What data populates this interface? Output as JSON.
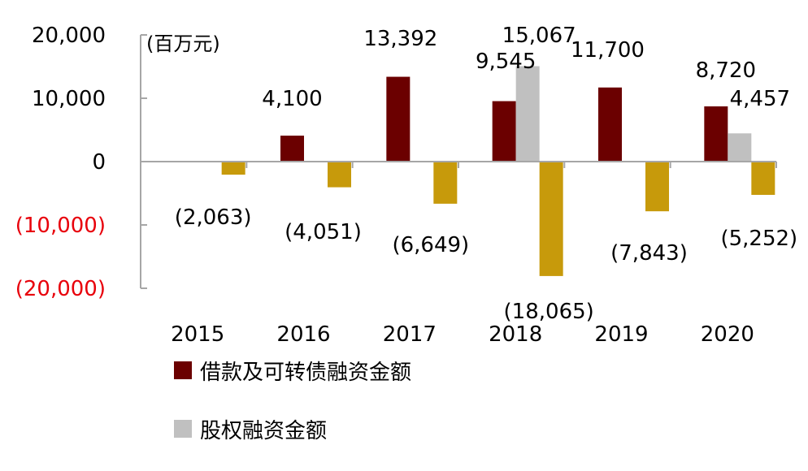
{
  "chart_data": {
    "type": "bar",
    "unit_label": "(百万元)",
    "categories": [
      "2015",
      "2016",
      "2017",
      "2018",
      "2019",
      "2020"
    ],
    "series": [
      {
        "name": "借款及可转债融资金额",
        "color": "#6b0000",
        "values": [
          null,
          4100,
          13392,
          9545,
          11700,
          8720
        ],
        "labels": [
          "",
          "4,100",
          "13,392",
          "9,545",
          "11,700",
          "8,720"
        ]
      },
      {
        "name": "股权融资金额",
        "color": "#c0c0c0",
        "values": [
          null,
          null,
          null,
          15067,
          null,
          4457
        ],
        "labels": [
          "",
          "",
          "",
          "15,067",
          "",
          "4,457"
        ]
      },
      {
        "values": [
          -2063,
          -4051,
          -6649,
          -18065,
          -7843,
          -5252
        ],
        "color": "#c79a0b",
        "labels": [
          "(2,063)",
          "(4,051)",
          "(6,649)",
          "(18,065)",
          "(7,843)",
          "(5,252)"
        ]
      }
    ],
    "yticks": [
      {
        "value": 20000,
        "label": "20,000"
      },
      {
        "value": 10000,
        "label": "10,000"
      },
      {
        "value": 0,
        "label": "0"
      },
      {
        "value": -10000,
        "label": "(10,000)"
      },
      {
        "value": -20000,
        "label": "(20,000)"
      }
    ],
    "ylim": [
      -20000,
      20000
    ],
    "negative_tick_color": "#e8000b",
    "grid": false,
    "legend_position": "bottom-left"
  }
}
